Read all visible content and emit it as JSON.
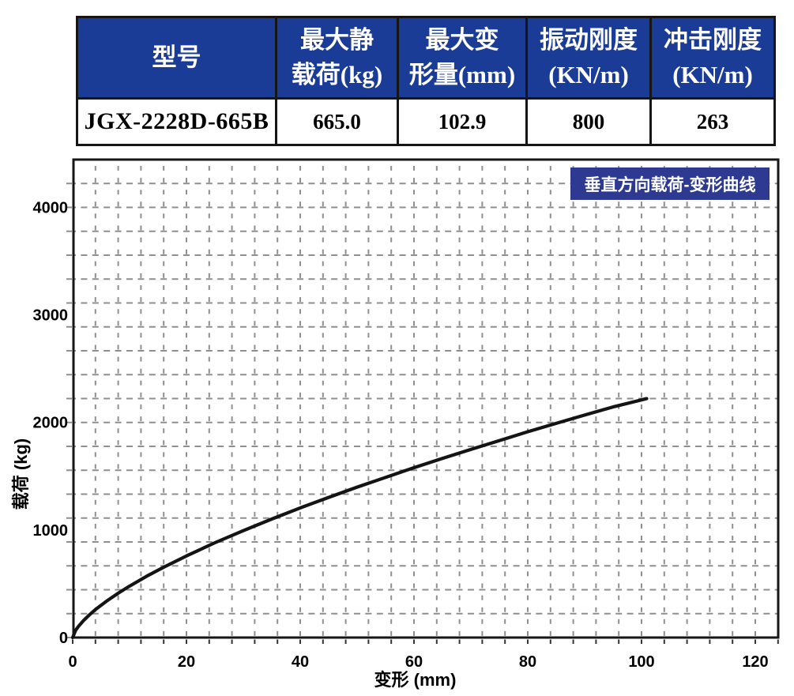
{
  "table": {
    "columns": [
      {
        "header": [
          "型号",
          ""
        ],
        "value": "JGX-2228D-665B"
      },
      {
        "header": [
          "最大静",
          "载荷(kg)"
        ],
        "value": "665.0"
      },
      {
        "header": [
          "最大变",
          "形量(mm)"
        ],
        "value": "102.9"
      },
      {
        "header": [
          "振动刚度",
          "(KN/m)"
        ],
        "value": "800"
      },
      {
        "header": [
          "冲击刚度",
          "(KN/m)"
        ],
        "value": "263"
      }
    ]
  },
  "chart": {
    "badge_label": "垂直方向载荷-变形曲线",
    "xlabel": "变形 (mm)",
    "ylabel": "载荷 (kg)"
  },
  "chart_data": {
    "type": "line",
    "title": "垂直方向载荷-变形曲线",
    "xlabel": "变形 (mm)",
    "ylabel": "载荷 (kg)",
    "xlim": [
      0,
      124
    ],
    "ylim": [
      0,
      4440
    ],
    "x_ticks": [
      0,
      20,
      40,
      60,
      80,
      100,
      120
    ],
    "y_ticks": [
      0,
      1000,
      2000,
      3000,
      4000
    ],
    "grid": "dashed",
    "legend_position": "none",
    "series": [
      {
        "name": "垂直方向载荷-变形曲线",
        "points": [
          [
            0,
            0
          ],
          [
            0.5,
            65
          ],
          [
            1,
            103
          ],
          [
            2,
            163
          ],
          [
            3,
            214
          ],
          [
            4,
            260
          ],
          [
            6,
            340
          ],
          [
            8,
            412
          ],
          [
            10,
            478
          ],
          [
            13,
            570
          ],
          [
            16,
            654
          ],
          [
            20,
            759
          ],
          [
            25,
            881
          ],
          [
            30,
            994
          ],
          [
            35,
            1102
          ],
          [
            40,
            1205
          ],
          [
            45,
            1303
          ],
          [
            50,
            1398
          ],
          [
            55,
            1489
          ],
          [
            60,
            1579
          ],
          [
            65,
            1665
          ],
          [
            70,
            1749
          ],
          [
            75,
            1831
          ],
          [
            80,
            1913
          ],
          [
            85,
            1991
          ],
          [
            90,
            2068
          ],
          [
            95,
            2144
          ],
          [
            100.9,
            2221
          ]
        ]
      }
    ]
  },
  "colors": {
    "table_header_bg": "#1b3c96",
    "table_header_text": "#ffffff",
    "badge_bg": "#2e3a92",
    "badge_text": "#ffffff",
    "curve": "#141414",
    "grid": "#8f8f8f",
    "border": "#161616"
  }
}
